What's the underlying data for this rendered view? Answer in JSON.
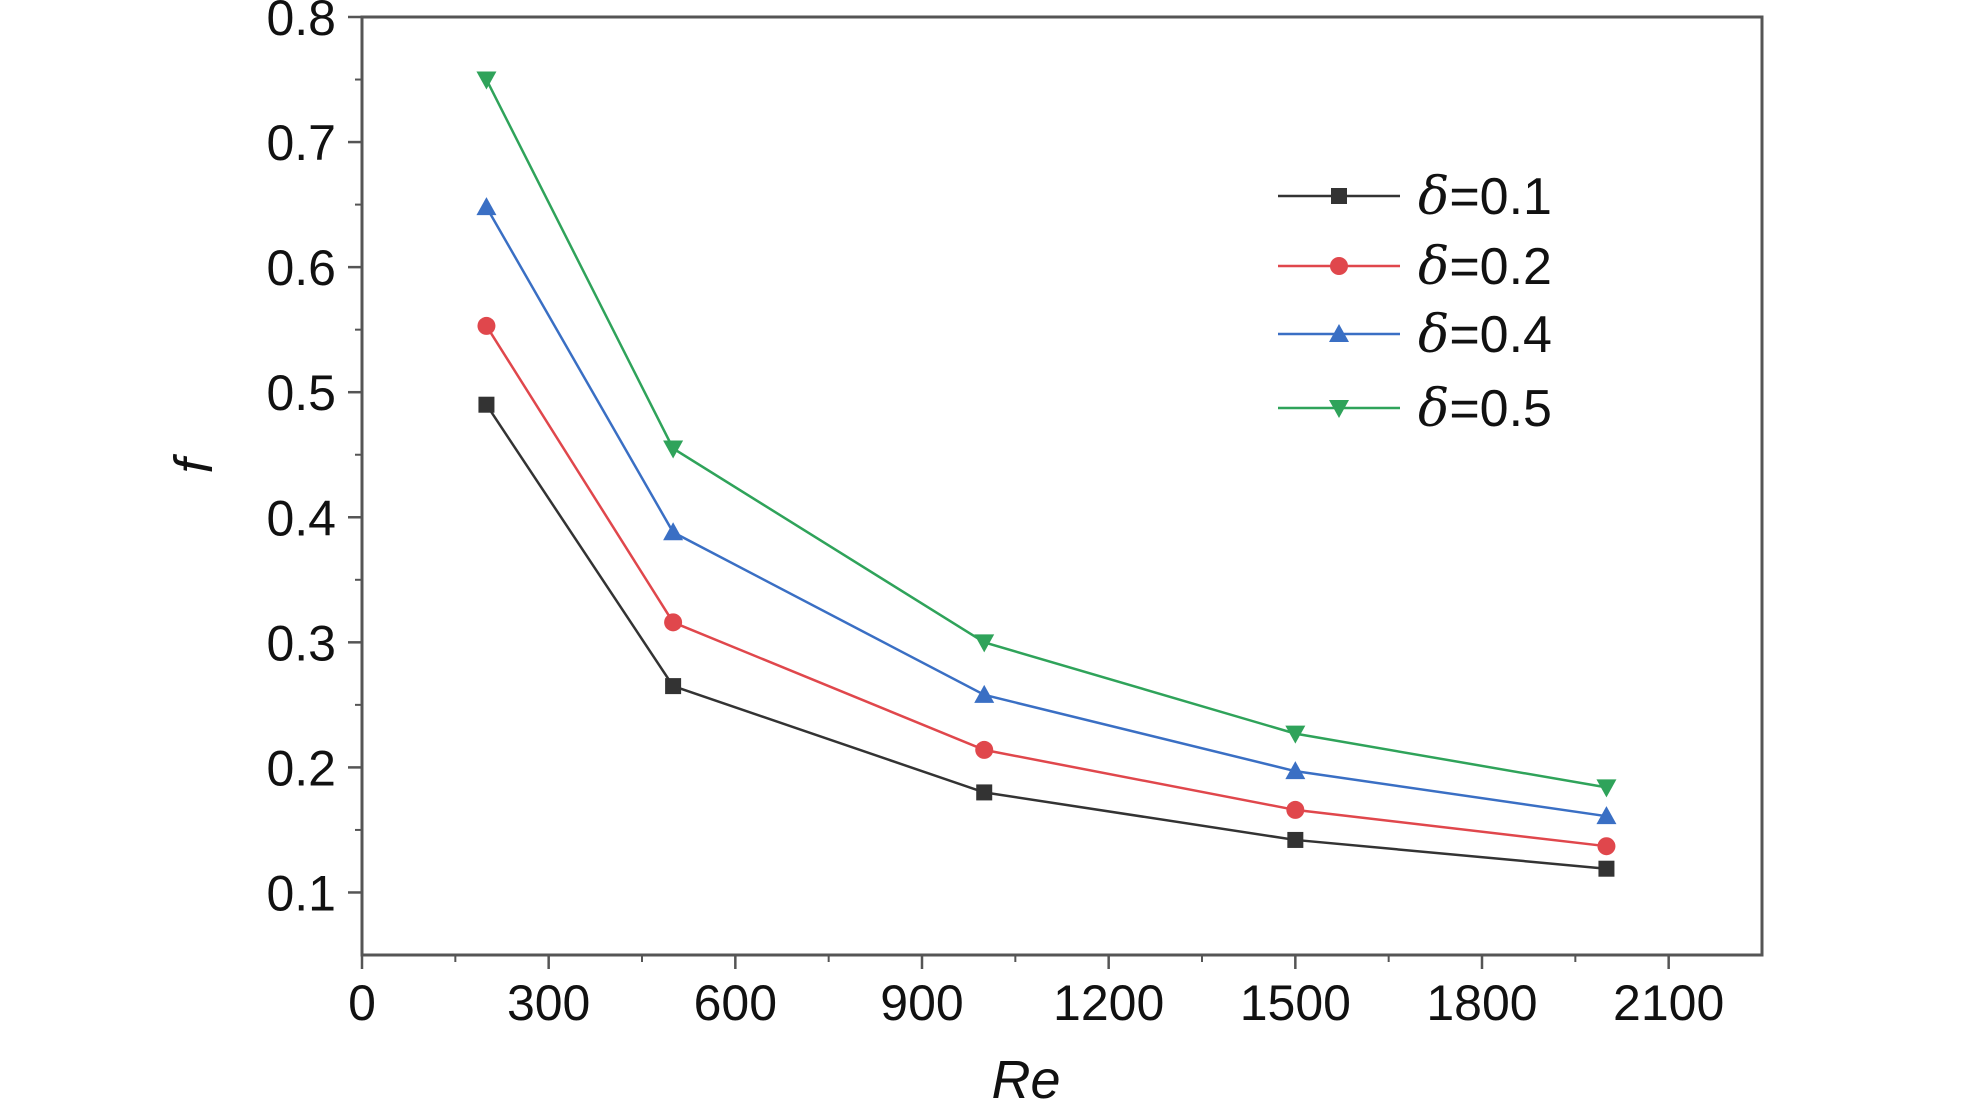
{
  "chart_data": {
    "type": "line",
    "title": "",
    "xlabel": "Re",
    "ylabel": "f",
    "xlim": [
      0,
      2250
    ],
    "ylim": [
      0.05,
      0.8
    ],
    "xticks": [
      0,
      300,
      600,
      900,
      1200,
      1500,
      1800,
      2100
    ],
    "xtick_labels": [
      "0",
      "300",
      "600",
      "900",
      "1200",
      "1500",
      "1800",
      "2100"
    ],
    "yticks": [
      0.1,
      0.2,
      0.3,
      0.4,
      0.5,
      0.6,
      0.7,
      0.8
    ],
    "ytick_labels": [
      "0.1",
      "0.2",
      "0.3",
      "0.4",
      "0.5",
      "0.6",
      "0.7",
      "0.8"
    ],
    "grid": false,
    "legend_position": "top-right",
    "legend_symbol": "δ",
    "x": [
      200,
      500,
      1000,
      1500,
      2000
    ],
    "series": [
      {
        "name": "=0.1",
        "color": "#333333",
        "marker": "square",
        "values": [
          0.49,
          0.265,
          0.18,
          0.142,
          0.119
        ]
      },
      {
        "name": "=0.2",
        "color": "#e0474c",
        "marker": "circle",
        "values": [
          0.553,
          0.316,
          0.214,
          0.166,
          0.137
        ]
      },
      {
        "name": "=0.4",
        "color": "#3a6fc4",
        "marker": "triangle-up",
        "values": [
          0.648,
          0.388,
          0.258,
          0.197,
          0.161
        ]
      },
      {
        "name": "=0.5",
        "color": "#2fa35a",
        "marker": "triangle-down",
        "values": [
          0.75,
          0.455,
          0.3,
          0.227,
          0.184
        ]
      }
    ]
  }
}
